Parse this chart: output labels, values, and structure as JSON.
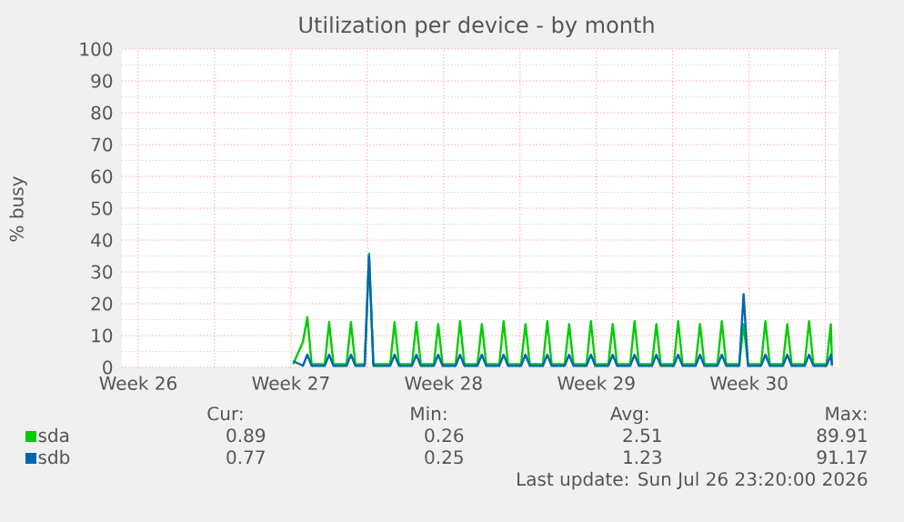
{
  "chart_data": {
    "type": "line",
    "title": "Utilization per device - by month",
    "ylabel": "% busy",
    "xlim": [
      "2026-06-24T18:00",
      "2026-07-27T14:24"
    ],
    "ylim": [
      0,
      100
    ],
    "xticks": [
      {
        "value": "2026-06-25T12:00",
        "label": "Week 26"
      },
      {
        "value": "2026-06-29",
        "label": null
      },
      {
        "value": "2026-07-02T12:00",
        "label": "Week 27"
      },
      {
        "value": "2026-07-06",
        "label": null
      },
      {
        "value": "2026-07-09T12:00",
        "label": "Week 28"
      },
      {
        "value": "2026-07-13",
        "label": null
      },
      {
        "value": "2026-07-16T12:00",
        "label": "Week 29"
      },
      {
        "value": "2026-07-20",
        "label": null
      },
      {
        "value": "2026-07-23T12:00",
        "label": "Week 30"
      },
      {
        "value": "2026-07-27",
        "label": null
      }
    ],
    "yticks": [
      0,
      10,
      20,
      30,
      40,
      50,
      60,
      70,
      80,
      90,
      100
    ],
    "grid": true,
    "legend": "bottom",
    "x": [
      "2026-07-02T14:24",
      "2026-07-03T01:12",
      "2026-07-03T06:00",
      "2026-07-03T10:48",
      "2026-07-04T01:12",
      "2026-07-04T06:00",
      "2026-07-04T10:48",
      "2026-07-05T01:12",
      "2026-07-05T06:00",
      "2026-07-05T10:48",
      "2026-07-05T21:07",
      "2026-07-06T01:55",
      "2026-07-06T06:43",
      "2026-07-07T01:12",
      "2026-07-07T06:00",
      "2026-07-07T10:48",
      "2026-07-08T01:12",
      "2026-07-08T06:00",
      "2026-07-08T10:48",
      "2026-07-09T01:12",
      "2026-07-09T06:00",
      "2026-07-09T10:48",
      "2026-07-10T01:12",
      "2026-07-10T06:00",
      "2026-07-10T10:48",
      "2026-07-11T01:12",
      "2026-07-11T06:00",
      "2026-07-11T10:48",
      "2026-07-12T01:12",
      "2026-07-12T06:00",
      "2026-07-12T10:48",
      "2026-07-13T01:12",
      "2026-07-13T06:00",
      "2026-07-13T10:48",
      "2026-07-14T01:12",
      "2026-07-14T06:00",
      "2026-07-14T10:48",
      "2026-07-15T01:12",
      "2026-07-15T06:00",
      "2026-07-15T10:48",
      "2026-07-16T01:12",
      "2026-07-16T06:00",
      "2026-07-16T10:48",
      "2026-07-17T01:12",
      "2026-07-17T06:00",
      "2026-07-17T10:48",
      "2026-07-18T01:12",
      "2026-07-18T06:00",
      "2026-07-18T10:48",
      "2026-07-19T01:12",
      "2026-07-19T06:00",
      "2026-07-19T10:48",
      "2026-07-20T01:12",
      "2026-07-20T06:00",
      "2026-07-20T10:48",
      "2026-07-21T01:12",
      "2026-07-21T06:00",
      "2026-07-21T10:48",
      "2026-07-22T01:12",
      "2026-07-22T06:00",
      "2026-07-22T10:48",
      "2026-07-23T01:12",
      "2026-07-23T06:00",
      "2026-07-23T10:48",
      "2026-07-24T01:12",
      "2026-07-24T06:00",
      "2026-07-24T10:48",
      "2026-07-25T01:12",
      "2026-07-25T06:00",
      "2026-07-25T10:48",
      "2026-07-26T01:12",
      "2026-07-26T06:00",
      "2026-07-26T10:48",
      "2026-07-27T01:12",
      "2026-07-27T06:00",
      "2026-07-27T07:12"
    ],
    "series": [
      {
        "name": "sda",
        "color": "#00cc00",
        "values": [
          1,
          8,
          15.8,
          1,
          1,
          14.2,
          1,
          1,
          14.2,
          1,
          1,
          35.7,
          1,
          1,
          14.2,
          1,
          1,
          14.2,
          1,
          1,
          13.6,
          1,
          1,
          14.5,
          1,
          1,
          13.6,
          1,
          1,
          14.5,
          1,
          1,
          13.6,
          1,
          1,
          14.5,
          1,
          1,
          13.6,
          1,
          1,
          14.5,
          1,
          1,
          13.6,
          1,
          1,
          14.5,
          1,
          1,
          13.6,
          1,
          1,
          14.5,
          1,
          1,
          13.6,
          1,
          1,
          14.5,
          1,
          1,
          13.6,
          1,
          1,
          14.5,
          1,
          1,
          13.6,
          1,
          1,
          14.5,
          1,
          1,
          13.6,
          1
        ]
      },
      {
        "name": "sdb",
        "color": "#0066b3",
        "values": [
          2,
          0.5,
          4,
          0.5,
          0.5,
          4,
          0.5,
          0.5,
          4,
          0.5,
          0.5,
          35,
          0.5,
          0.5,
          4,
          0.5,
          0.5,
          4,
          0.5,
          0.5,
          4,
          0.5,
          0.5,
          4,
          0.5,
          0.5,
          4,
          0.5,
          0.5,
          4,
          0.5,
          0.5,
          4,
          0.5,
          0.5,
          4,
          0.5,
          0.5,
          4,
          0.5,
          0.5,
          4,
          0.5,
          0.5,
          4,
          0.5,
          0.5,
          4,
          0.5,
          0.5,
          4,
          0.5,
          0.5,
          4,
          0.5,
          0.5,
          4,
          0.5,
          0.5,
          4,
          0.5,
          0.5,
          23,
          0.5,
          0.5,
          4,
          0.5,
          0.5,
          4,
          0.5,
          0.5,
          4,
          0.5,
          0.5,
          4,
          0.5
        ]
      }
    ],
    "annotations": [
      "Cur:",
      "Min:",
      "Avg:",
      "Max:",
      "0.89",
      "0.26",
      "2.51",
      "89.91",
      "0.77",
      "0.25",
      "1.23",
      "91.17",
      "Last update: Sun Jul 26 23:20:00 2026"
    ]
  }
}
